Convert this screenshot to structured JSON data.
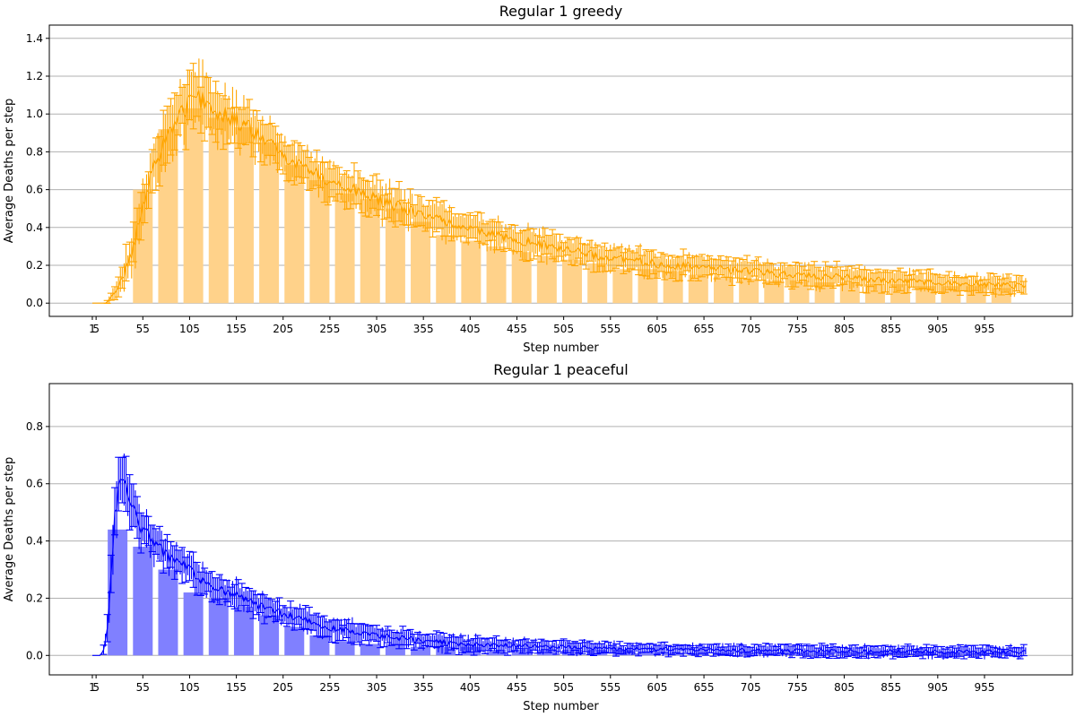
{
  "chart_data": [
    {
      "type": "bar",
      "title": "Regular 1 greedy",
      "xlabel": "Step number",
      "ylabel": "Average Deaths per step",
      "xlim": [
        -45,
        1049
      ],
      "ylim": [
        -0.07,
        1.47
      ],
      "x_ticks": [
        "1",
        "5",
        "55",
        "105",
        "155",
        "205",
        "255",
        "305",
        "355",
        "405",
        "455",
        "505",
        "555",
        "605",
        "655",
        "705",
        "755",
        "805",
        "855",
        "905",
        "955"
      ],
      "y_ticks": [
        "0.0",
        "0.2",
        "0.4",
        "0.6",
        "0.8",
        "1.0",
        "1.2",
        "1.4"
      ],
      "grid": "horizontal",
      "bar_color": "#ffd28a",
      "line_color": "#ffa500",
      "bar_x": [
        55,
        82,
        109,
        136,
        163,
        190,
        217,
        244,
        271,
        298,
        325,
        352,
        379,
        406,
        433,
        460,
        487,
        514,
        541,
        568,
        595,
        622,
        649,
        676,
        703,
        730,
        757,
        784,
        811,
        838,
        865,
        892,
        919,
        946,
        973
      ],
      "bar_values": [
        0.6,
        0.92,
        1.03,
        0.98,
        0.93,
        0.85,
        0.73,
        0.65,
        0.58,
        0.55,
        0.5,
        0.43,
        0.36,
        0.33,
        0.3,
        0.27,
        0.25,
        0.23,
        0.21,
        0.18,
        0.18,
        0.17,
        0.15,
        0.14,
        0.13,
        0.12,
        0.12,
        0.11,
        0.11,
        0.1,
        0.1,
        0.09,
        0.09,
        0.09,
        0.08
      ],
      "mean_curve": {
        "x": [
          1,
          15,
          20,
          25,
          30,
          35,
          40,
          45,
          50,
          55,
          60,
          70,
          80,
          90,
          100,
          110,
          120,
          130,
          140,
          160,
          180,
          200,
          220,
          250,
          280,
          300,
          320,
          340,
          360,
          380,
          400,
          430,
          460,
          500,
          550,
          600,
          650,
          700,
          750,
          800,
          850,
          900,
          950,
          1000
        ],
        "y": [
          0.0,
          0.0,
          0.02,
          0.06,
          0.11,
          0.16,
          0.22,
          0.3,
          0.4,
          0.5,
          0.6,
          0.76,
          0.88,
          0.96,
          1.03,
          1.08,
          1.07,
          1.03,
          1.0,
          0.95,
          0.88,
          0.8,
          0.74,
          0.66,
          0.6,
          0.56,
          0.52,
          0.49,
          0.46,
          0.43,
          0.4,
          0.36,
          0.33,
          0.29,
          0.24,
          0.21,
          0.19,
          0.17,
          0.15,
          0.14,
          0.12,
          0.11,
          0.1,
          0.09
        ],
        "err": [
          0.0,
          0.0,
          0.02,
          0.04,
          0.07,
          0.09,
          0.1,
          0.11,
          0.12,
          0.12,
          0.12,
          0.13,
          0.14,
          0.15,
          0.16,
          0.16,
          0.16,
          0.15,
          0.14,
          0.14,
          0.13,
          0.12,
          0.11,
          0.11,
          0.1,
          0.1,
          0.1,
          0.09,
          0.09,
          0.09,
          0.08,
          0.08,
          0.08,
          0.07,
          0.07,
          0.07,
          0.06,
          0.06,
          0.06,
          0.06,
          0.06,
          0.05,
          0.05,
          0.05
        ]
      }
    },
    {
      "type": "bar",
      "title": "Regular 1 peaceful",
      "xlabel": "Step number",
      "ylabel": "Average Deaths per step",
      "xlim": [
        -45,
        1049
      ],
      "ylim": [
        -0.068,
        0.95
      ],
      "x_ticks": [
        "1",
        "5",
        "55",
        "105",
        "155",
        "205",
        "255",
        "305",
        "355",
        "405",
        "455",
        "505",
        "555",
        "605",
        "655",
        "705",
        "755",
        "805",
        "855",
        "905",
        "955"
      ],
      "y_ticks": [
        "0.0",
        "0.2",
        "0.4",
        "0.6",
        "0.8"
      ],
      "grid": "horizontal",
      "bar_color": "#8080ff",
      "line_color": "#0000ff",
      "bar_x": [
        28,
        55,
        82,
        109,
        136,
        163,
        190,
        217,
        244,
        271,
        298,
        325,
        352,
        379,
        406,
        433,
        460,
        487,
        514,
        541,
        568,
        595,
        622,
        649,
        676,
        703,
        730,
        757,
        784,
        811,
        838,
        865,
        892,
        919,
        946,
        973
      ],
      "bar_values": [
        0.44,
        0.38,
        0.3,
        0.22,
        0.2,
        0.17,
        0.14,
        0.1,
        0.07,
        0.05,
        0.04,
        0.04,
        0.03,
        0.03,
        0.03,
        0.02,
        0.02,
        0.02,
        0.02,
        0.02,
        0.02,
        0.01,
        0.01,
        0.01,
        0.01,
        0.01,
        0.01,
        0.01,
        0.01,
        0.01,
        0.01,
        0.01,
        0.01,
        0.01,
        0.01,
        0.01
      ],
      "mean_curve": {
        "x": [
          1,
          10,
          12,
          15,
          18,
          20,
          22,
          25,
          28,
          30,
          33,
          35,
          40,
          45,
          50,
          60,
          70,
          80,
          90,
          100,
          110,
          120,
          140,
          160,
          180,
          200,
          220,
          250,
          280,
          300,
          330,
          360,
          400,
          450,
          500,
          550,
          600,
          700,
          800,
          900,
          1000
        ],
        "y": [
          0.0,
          0.0,
          0.01,
          0.05,
          0.12,
          0.22,
          0.35,
          0.48,
          0.56,
          0.6,
          0.62,
          0.6,
          0.55,
          0.5,
          0.46,
          0.42,
          0.38,
          0.35,
          0.33,
          0.31,
          0.28,
          0.26,
          0.23,
          0.2,
          0.17,
          0.15,
          0.13,
          0.1,
          0.08,
          0.07,
          0.06,
          0.05,
          0.04,
          0.035,
          0.03,
          0.025,
          0.022,
          0.018,
          0.015,
          0.013,
          0.012
        ],
        "err": [
          0.0,
          0.0,
          0.01,
          0.03,
          0.05,
          0.07,
          0.08,
          0.09,
          0.1,
          0.1,
          0.1,
          0.09,
          0.09,
          0.08,
          0.08,
          0.07,
          0.07,
          0.06,
          0.06,
          0.06,
          0.06,
          0.05,
          0.05,
          0.05,
          0.05,
          0.04,
          0.04,
          0.04,
          0.04,
          0.03,
          0.03,
          0.03,
          0.03,
          0.025,
          0.025,
          0.02,
          0.02,
          0.02,
          0.02,
          0.02,
          0.02
        ]
      }
    }
  ]
}
